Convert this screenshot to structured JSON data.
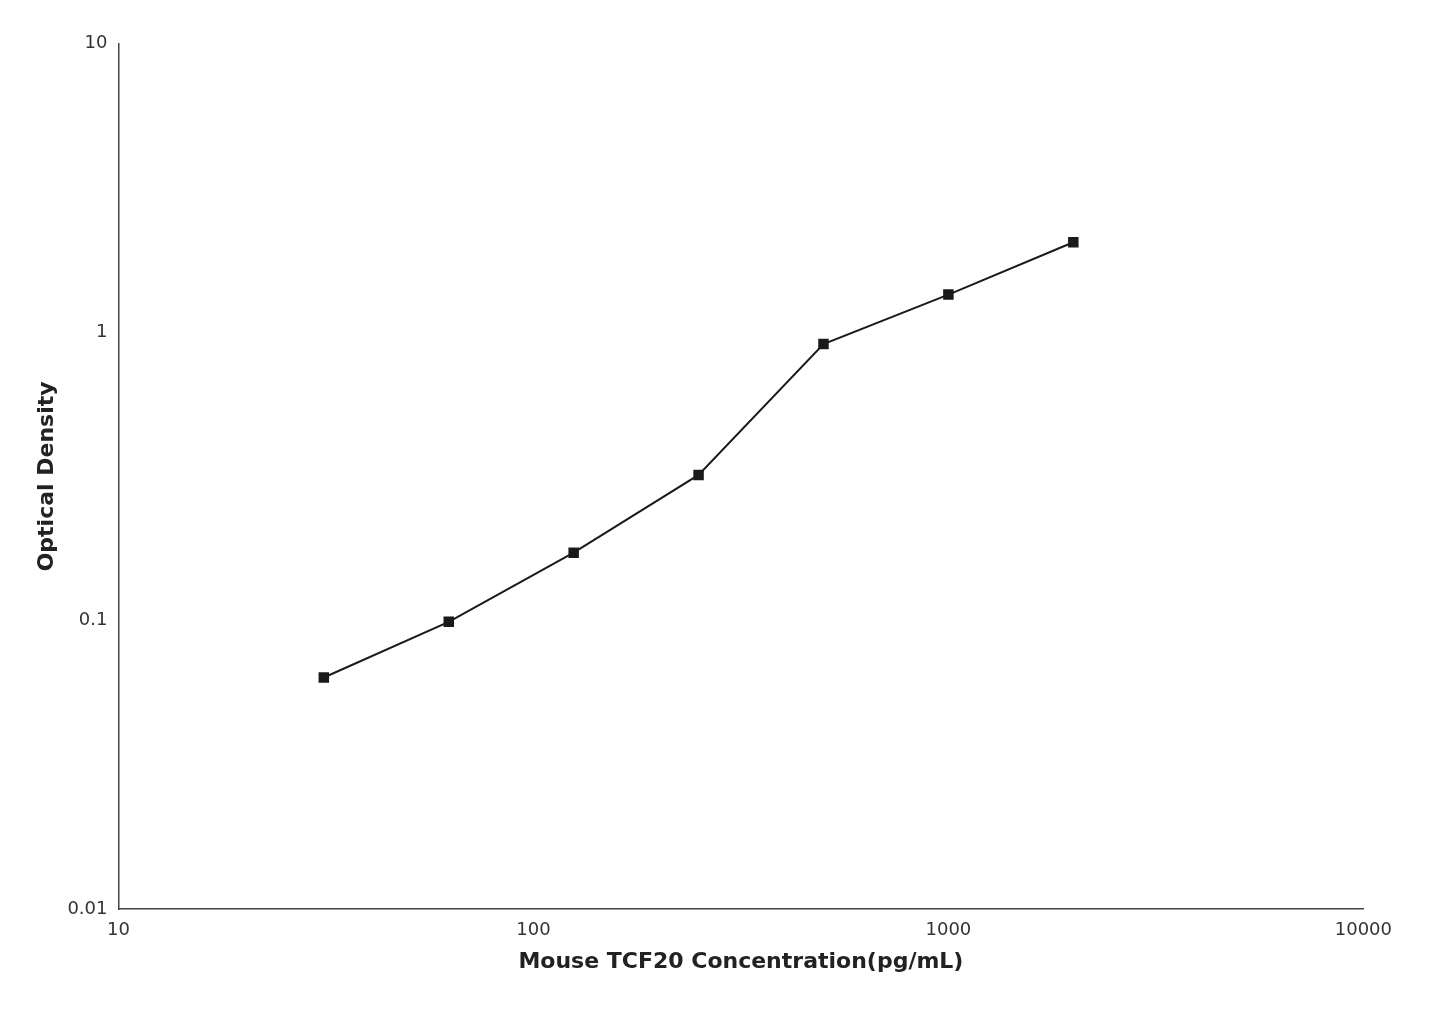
{
  "chart_data": {
    "type": "line",
    "x": [
      31.25,
      62.5,
      125,
      250,
      500,
      1000,
      2000
    ],
    "values": [
      0.0635,
      0.099,
      0.172,
      0.32,
      0.91,
      1.35,
      2.05
    ],
    "xlabel": "Mouse TCF20 Concentration(pg/mL)",
    "ylabel": "Optical Density",
    "xlim": [
      10,
      10000
    ],
    "ylim": [
      0.01,
      10
    ],
    "xticks": [
      10,
      100,
      1000,
      10000
    ],
    "yticks": [
      0.01,
      0.1,
      1,
      10
    ],
    "log": true,
    "grid": false,
    "color": "#1a1a1a",
    "marker": "square"
  }
}
